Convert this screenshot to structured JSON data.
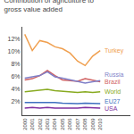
{
  "chart_data": {
    "type": "line",
    "title": "Contribution of agriculture to gross value added",
    "x": [
      2000,
      2001,
      2002,
      2003,
      2004,
      2005,
      2006,
      2007,
      2008,
      2009,
      2010
    ],
    "series": [
      {
        "name": "Turkey",
        "color": "#f0a050",
        "values": [
          12.8,
          10.2,
          11.8,
          11.5,
          10.8,
          10.5,
          9.8,
          8.5,
          7.8,
          9.3,
          10.2
        ]
      },
      {
        "name": "Brazil",
        "color": "#d06060",
        "values": [
          5.5,
          5.7,
          6.2,
          7.0,
          6.2,
          5.5,
          5.4,
          5.3,
          5.7,
          5.4,
          5.2
        ]
      },
      {
        "name": "Russia",
        "color": "#8080c8",
        "values": [
          5.8,
          6.0,
          6.2,
          6.8,
          6.0,
          5.8,
          5.5,
          5.2,
          5.0,
          5.2,
          5.4
        ]
      },
      {
        "name": "World",
        "color": "#88aa20",
        "values": [
          3.6,
          3.7,
          3.8,
          4.0,
          3.8,
          3.7,
          3.6,
          3.5,
          3.6,
          3.5,
          3.6
        ]
      },
      {
        "name": "EU27",
        "color": "#4070c0",
        "values": [
          1.9,
          1.9,
          2.0,
          2.0,
          1.9,
          1.8,
          1.7,
          1.7,
          1.8,
          1.7,
          1.7
        ]
      },
      {
        "name": "USA",
        "color": "#8030a0",
        "values": [
          1.0,
          1.1,
          1.0,
          1.1,
          1.0,
          1.0,
          0.9,
          1.0,
          1.1,
          1.0,
          1.0
        ]
      }
    ],
    "xlim": [
      1999.8,
      2014.0
    ],
    "xticks": [
      2000,
      2001,
      2002,
      2003,
      2004,
      2005,
      2006,
      2007,
      2008,
      2009,
      2010
    ],
    "ylim": [
      0,
      14
    ],
    "yticks": [
      {
        "value": 2,
        "label": "2%"
      },
      {
        "value": 4,
        "label": "4%"
      },
      {
        "value": 6,
        "label": "6%"
      },
      {
        "value": 8,
        "label": "8%"
      },
      {
        "value": 10,
        "label": "10%"
      },
      {
        "value": 12,
        "label": "12%"
      }
    ],
    "grid": false
  }
}
